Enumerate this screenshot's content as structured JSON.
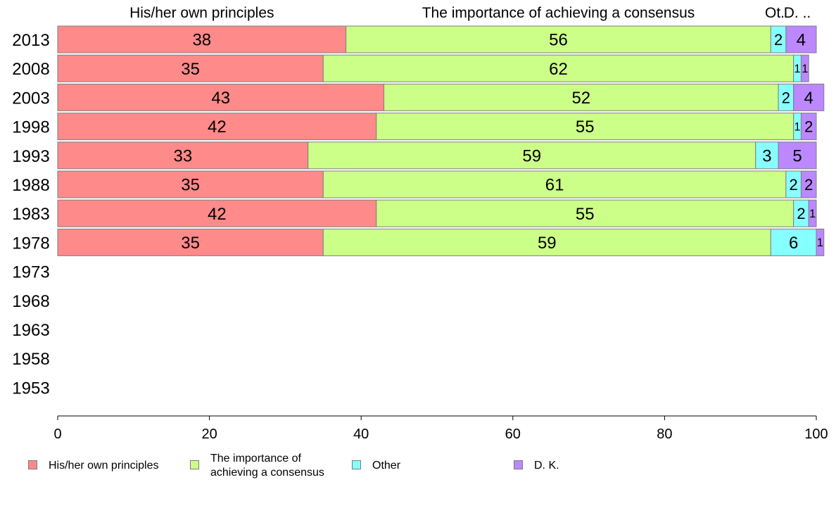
{
  "chart_data": {
    "type": "bar",
    "orientation": "horizontal",
    "stacked": true,
    "categories": [
      "2013",
      "2008",
      "2003",
      "1998",
      "1993",
      "1988",
      "1983",
      "1978",
      "1973",
      "1968",
      "1963",
      "1958",
      "1953"
    ],
    "series": [
      {
        "name": "His/her own principles",
        "color": "#ff8a8a",
        "values": [
          38,
          35,
          43,
          42,
          33,
          35,
          42,
          35,
          null,
          null,
          null,
          null,
          null
        ]
      },
      {
        "name": "The importance of achieving a consensus",
        "color": "#ccff88",
        "values": [
          56,
          62,
          52,
          55,
          59,
          61,
          55,
          59,
          null,
          null,
          null,
          null,
          null
        ]
      },
      {
        "name": "Other",
        "color": "#88ffff",
        "values": [
          2,
          1,
          2,
          1,
          3,
          2,
          2,
          6,
          null,
          null,
          null,
          null,
          null
        ]
      },
      {
        "name": "D. K.",
        "color": "#bb88ff",
        "values": [
          4,
          1,
          4,
          2,
          5,
          2,
          1,
          1,
          null,
          null,
          null,
          null,
          null
        ]
      }
    ],
    "top_labels": [
      "His/her own principles",
      "The importance of achieving a consensus",
      "Ot.",
      "D. .."
    ],
    "xlim": [
      0,
      100
    ],
    "xticks": [
      0,
      20,
      40,
      60,
      80,
      100
    ],
    "grid": false,
    "legend_position": "bottom"
  },
  "legend": [
    {
      "label": "His/her own principles",
      "color": "#ff8a8a"
    },
    {
      "label": "The importance of achieving a consensus",
      "color": "#ccff88"
    },
    {
      "label": "Other",
      "color": "#88ffff"
    },
    {
      "label": "D. K.",
      "color": "#bb88ff"
    }
  ]
}
